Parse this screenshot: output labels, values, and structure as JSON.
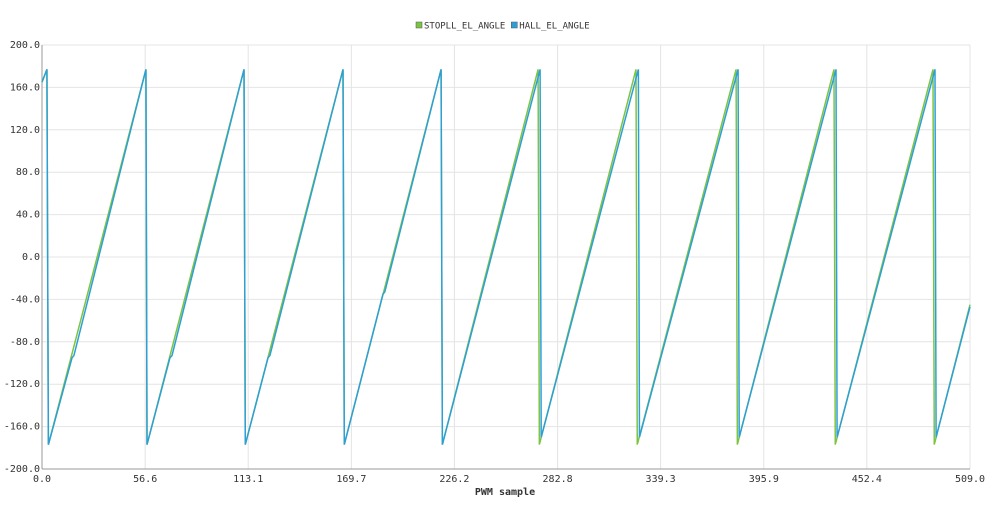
{
  "chart_data": {
    "type": "line",
    "xlabel": "PWM sample",
    "xlim": [
      0,
      509
    ],
    "ylim": [
      -200,
      200
    ],
    "xticks": [
      {
        "value": 0,
        "label": "0.0"
      },
      56.6,
      113.1,
      169.7,
      226.2,
      282.8,
      339.3,
      395.9,
      452.4,
      {
        "value": 509,
        "label": "509.0"
      }
    ],
    "yticks": [
      {
        "value": -200,
        "label": "-200.0"
      },
      {
        "value": -160,
        "label": "-160.0"
      },
      {
        "value": -120,
        "label": "-120.0"
      },
      {
        "value": -80,
        "label": "-80.0"
      },
      {
        "value": -40,
        "label": "-40.0"
      },
      {
        "value": 0,
        "label": "0.0"
      },
      {
        "value": 40,
        "label": "40.0"
      },
      {
        "value": 80,
        "label": "80.0"
      },
      {
        "value": 120,
        "label": "120.0"
      },
      {
        "value": 160,
        "label": "160.0"
      },
      {
        "value": 200,
        "label": "200.0"
      }
    ],
    "grid": true,
    "series": [
      {
        "name": "STOPLL_EL_ANGLE",
        "color": "#7cc444",
        "x": [
          0,
          2.7,
          3.5,
          57.0,
          57.6,
          110.8,
          111.5,
          165.1,
          165.8,
          218.9,
          219.6,
          272.1,
          272.8,
          325.8,
          326.5,
          380.7,
          381.4,
          434.4,
          435.1,
          488.7,
          489.4,
          509
        ],
        "values": [
          165,
          177,
          -177,
          177,
          -177,
          177,
          -177,
          177,
          -177,
          177,
          -177,
          177,
          -177,
          177,
          -177,
          177,
          -177,
          177,
          -177,
          177,
          -177,
          -45
        ]
      },
      {
        "name": "HALL_EL_ANGLE",
        "color": "#2e9fd6",
        "x": [
          0,
          2.7,
          3.5,
          16.5,
          17.5,
          57.0,
          57.6,
          70.2,
          71.3,
          110.8,
          111.5,
          124,
          125,
          165.1,
          165.8,
          187,
          188,
          218.9,
          219.6,
          273.2,
          273.8,
          327.1,
          327.7,
          381.8,
          382.4,
          435.5,
          436.1,
          489.8,
          490.4,
          509
        ],
        "values": [
          165,
          177,
          -177,
          -95,
          -93,
          177,
          -177,
          -95,
          -93,
          177,
          -177,
          -95,
          -93,
          177,
          -177,
          -35,
          -33,
          177,
          -177,
          177,
          -170,
          177,
          -170,
          177,
          -170,
          177,
          -170,
          177,
          -170,
          -47
        ]
      }
    ]
  }
}
